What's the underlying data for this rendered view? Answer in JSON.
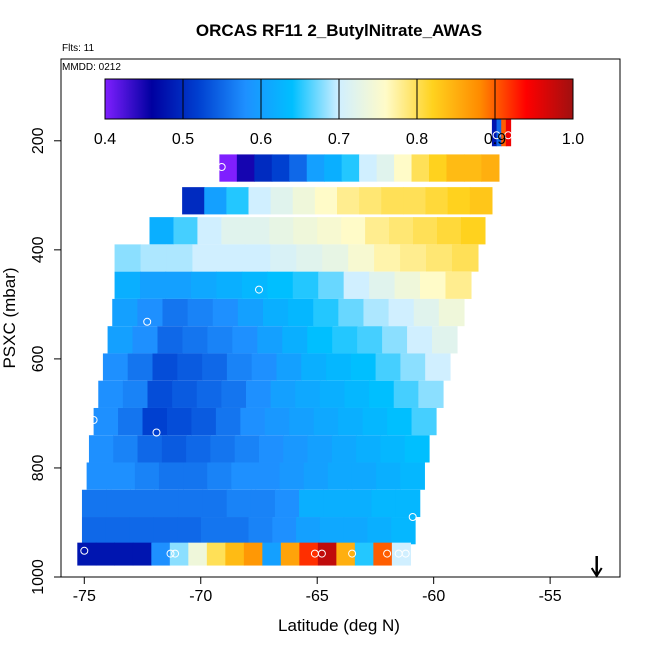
{
  "chart_data": {
    "type": "heatmap",
    "title": "ORCAS RF11 2_ButylNitrate_AWAS",
    "flights_label": "Flts: 11",
    "date_label": "MMDD: 0212",
    "xlabel": "Latitude (deg N)",
    "ylabel": "PSXC (mbar)",
    "xlim": [
      -76,
      -52
    ],
    "ylim": [
      1000,
      50
    ],
    "y_reversed": true,
    "x_ticks": [
      -75,
      -70,
      -65,
      -60,
      -55
    ],
    "y_ticks": [
      200,
      400,
      600,
      800,
      1000
    ],
    "colorbar": {
      "min": 0.4,
      "max": 1.0,
      "ticks": [
        "0.4",
        "0.5",
        "0.6",
        "0.7",
        "0.8",
        "0.9",
        "1.0"
      ],
      "colors": [
        "#7f1fff",
        "#0000a0",
        "#0040d0",
        "#1e90ff",
        "#00bfff",
        "#d0efff",
        "#fffbc8",
        "#ffd21e",
        "#ff8c00",
        "#ff0000",
        "#a01010"
      ]
    },
    "rows": [
      {
        "pressure": 185,
        "height": 50,
        "x_start": -57.5,
        "x_end": -56.7,
        "values": [
          0.48,
          0.55,
          0.9,
          0.95
        ]
      },
      {
        "pressure": 250,
        "height": 50,
        "x_start": -69.2,
        "x_end": -57.2,
        "values": [
          0.4,
          0.45,
          0.5,
          0.52,
          0.55,
          0.6,
          0.62,
          0.65,
          0.7,
          0.72,
          0.76,
          0.8,
          0.82,
          0.84,
          0.84,
          0.85
        ]
      },
      {
        "pressure": 310,
        "height": 50,
        "x_start": -70.8,
        "x_end": -57.5,
        "values": [
          0.5,
          0.6,
          0.65,
          0.7,
          0.72,
          0.74,
          0.76,
          0.78,
          0.79,
          0.8,
          0.8,
          0.81,
          0.82,
          0.83
        ]
      },
      {
        "pressure": 365,
        "height": 50,
        "x_start": -72.2,
        "x_end": -57.8,
        "values": [
          0.62,
          0.66,
          0.7,
          0.72,
          0.72,
          0.73,
          0.74,
          0.75,
          0.76,
          0.78,
          0.79,
          0.8,
          0.81,
          0.82
        ]
      },
      {
        "pressure": 415,
        "height": 50,
        "x_start": -73.7,
        "x_end": -58.1,
        "values": [
          0.68,
          0.69,
          0.69,
          0.7,
          0.7,
          0.7,
          0.71,
          0.72,
          0.73,
          0.75,
          0.77,
          0.78,
          0.79,
          0.8
        ]
      },
      {
        "pressure": 465,
        "height": 50,
        "x_start": -73.7,
        "x_end": -58.4,
        "values": [
          0.62,
          0.6,
          0.6,
          0.61,
          0.62,
          0.63,
          0.64,
          0.65,
          0.67,
          0.7,
          0.72,
          0.74,
          0.76,
          0.78
        ]
      },
      {
        "pressure": 515,
        "height": 50,
        "x_start": -73.8,
        "x_end": -58.7,
        "values": [
          0.6,
          0.58,
          0.56,
          0.57,
          0.58,
          0.6,
          0.62,
          0.63,
          0.65,
          0.67,
          0.69,
          0.7,
          0.72,
          0.74
        ]
      },
      {
        "pressure": 565,
        "height": 50,
        "x_start": -74.0,
        "x_end": -59.0,
        "values": [
          0.6,
          0.58,
          0.55,
          0.56,
          0.57,
          0.58,
          0.6,
          0.62,
          0.64,
          0.65,
          0.66,
          0.68,
          0.7,
          0.72
        ]
      },
      {
        "pressure": 615,
        "height": 50,
        "x_start": -74.2,
        "x_end": -59.3,
        "values": [
          0.58,
          0.56,
          0.53,
          0.54,
          0.55,
          0.57,
          0.58,
          0.6,
          0.62,
          0.63,
          0.64,
          0.66,
          0.68,
          0.7
        ]
      },
      {
        "pressure": 665,
        "height": 50,
        "x_start": -74.4,
        "x_end": -59.6,
        "values": [
          0.58,
          0.57,
          0.53,
          0.54,
          0.55,
          0.56,
          0.58,
          0.6,
          0.61,
          0.62,
          0.63,
          0.64,
          0.66,
          0.68
        ]
      },
      {
        "pressure": 715,
        "height": 50,
        "x_start": -74.6,
        "x_end": -59.9,
        "values": [
          0.58,
          0.56,
          0.52,
          0.53,
          0.54,
          0.56,
          0.58,
          0.59,
          0.6,
          0.61,
          0.62,
          0.63,
          0.64,
          0.66
        ]
      },
      {
        "pressure": 765,
        "height": 50,
        "x_start": -74.8,
        "x_end": -60.2,
        "values": [
          0.58,
          0.57,
          0.55,
          0.54,
          0.55,
          0.56,
          0.57,
          0.58,
          0.59,
          0.6,
          0.61,
          0.62,
          0.63,
          0.64
        ]
      },
      {
        "pressure": 815,
        "height": 50,
        "x_start": -74.9,
        "x_end": -60.4,
        "values": [
          0.58,
          0.58,
          0.57,
          0.56,
          0.56,
          0.57,
          0.58,
          0.58,
          0.59,
          0.6,
          0.61,
          0.61,
          0.62,
          0.63
        ]
      },
      {
        "pressure": 865,
        "height": 50,
        "x_start": -75.1,
        "x_end": -60.6,
        "values": [
          0.56,
          0.56,
          0.56,
          0.56,
          0.56,
          0.56,
          0.57,
          0.57,
          0.58,
          0.62,
          0.62,
          0.62,
          0.63,
          0.63
        ]
      },
      {
        "pressure": 915,
        "height": 50,
        "x_start": -75.1,
        "x_end": -60.8,
        "values": [
          0.55,
          0.55,
          0.55,
          0.55,
          0.55,
          0.56,
          0.56,
          0.57,
          0.58,
          0.6,
          0.61,
          0.61,
          0.62,
          0.63
        ]
      },
      {
        "pressure": 958,
        "height": 42,
        "x_start": -75.3,
        "x_end": -61.0,
        "values": [
          0.48,
          0.48,
          0.48,
          0.48,
          0.58,
          0.68,
          0.74,
          0.8,
          0.84,
          0.87,
          0.6,
          0.86,
          0.92,
          0.98,
          0.85,
          0.65,
          0.9,
          0.7
        ]
      }
    ],
    "sample_points": [
      {
        "lat": -57.3,
        "pressure": 190
      },
      {
        "lat": -56.8,
        "pressure": 190
      },
      {
        "lat": -69.1,
        "pressure": 248
      },
      {
        "lat": -67.5,
        "pressure": 473
      },
      {
        "lat": -72.3,
        "pressure": 532
      },
      {
        "lat": -74.6,
        "pressure": 712
      },
      {
        "lat": -71.9,
        "pressure": 735
      },
      {
        "lat": -60.9,
        "pressure": 890
      },
      {
        "lat": -75.0,
        "pressure": 952
      },
      {
        "lat": -71.3,
        "pressure": 957
      },
      {
        "lat": -71.1,
        "pressure": 957
      },
      {
        "lat": -65.1,
        "pressure": 957
      },
      {
        "lat": -64.8,
        "pressure": 957
      },
      {
        "lat": -63.5,
        "pressure": 957
      },
      {
        "lat": -62.0,
        "pressure": 957
      },
      {
        "lat": -61.5,
        "pressure": 957
      },
      {
        "lat": -61.2,
        "pressure": 957
      }
    ],
    "north_arrow_lat": -53.0,
    "grid": false,
    "legend": "top"
  }
}
